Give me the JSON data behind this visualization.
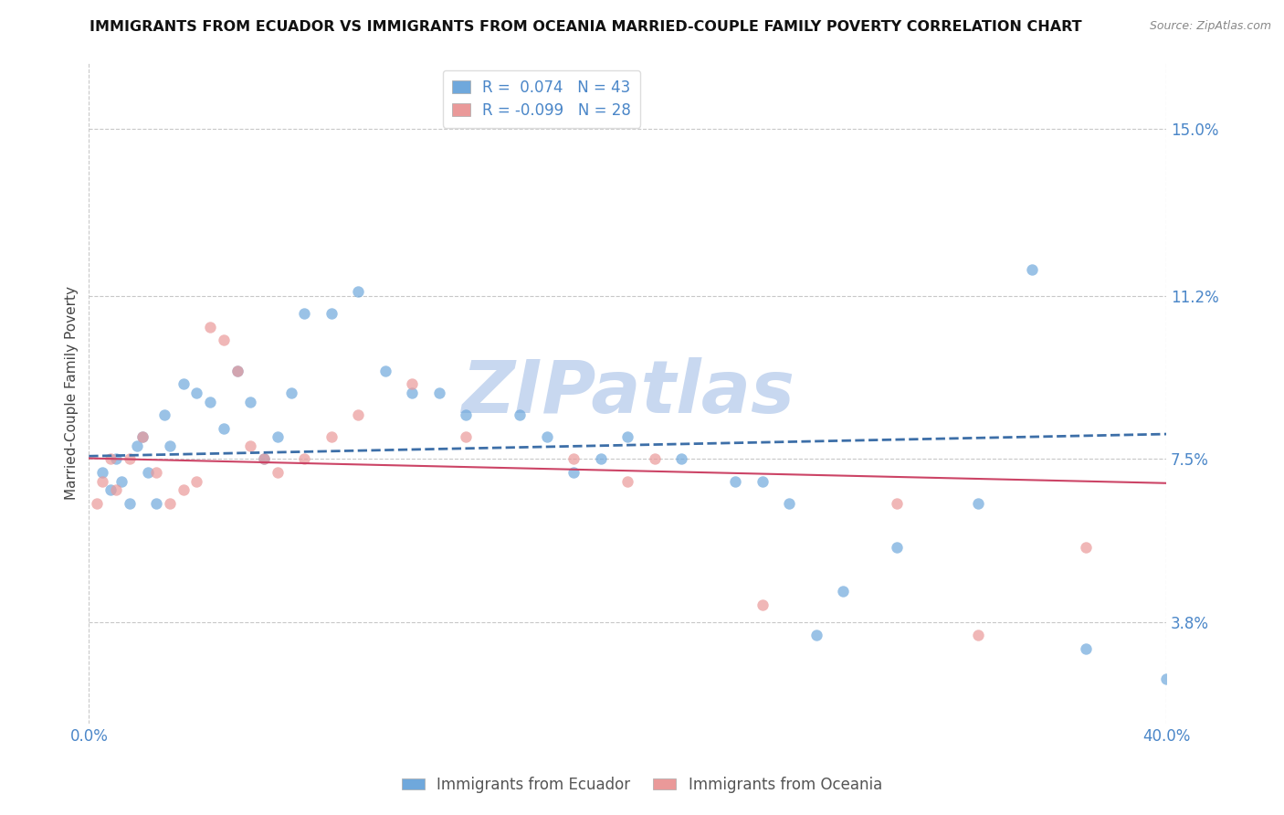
{
  "title": "IMMIGRANTS FROM ECUADOR VS IMMIGRANTS FROM OCEANIA MARRIED-COUPLE FAMILY POVERTY CORRELATION CHART",
  "source": "Source: ZipAtlas.com",
  "ylabel": "Married-Couple Family Poverty",
  "xlabel": "",
  "xlim": [
    0.0,
    40.0
  ],
  "ylim": [
    1.5,
    16.5
  ],
  "yticks": [
    3.8,
    7.5,
    11.2,
    15.0
  ],
  "xtick_labels": [
    "0.0%",
    "40.0%"
  ],
  "xtick_positions": [
    0.0,
    40.0
  ],
  "ytick_labels": [
    "3.8%",
    "7.5%",
    "11.2%",
    "15.0%"
  ],
  "ecuador_color": "#6fa8dc",
  "oceania_color": "#ea9999",
  "ecuador_line_color": "#3d6fa8",
  "oceania_line_color": "#cc4466",
  "ecuador_R": 0.074,
  "ecuador_N": 43,
  "oceania_R": -0.099,
  "oceania_N": 28,
  "watermark": "ZIPatlas",
  "watermark_color": "#c8d8f0",
  "ecuador_scatter_x": [
    0.5,
    0.8,
    1.0,
    1.2,
    1.5,
    1.8,
    2.0,
    2.2,
    2.5,
    2.8,
    3.0,
    3.5,
    4.0,
    4.5,
    5.0,
    5.5,
    6.0,
    6.5,
    7.0,
    7.5,
    8.0,
    9.0,
    10.0,
    11.0,
    12.0,
    13.0,
    14.0,
    16.0,
    17.0,
    18.0,
    19.0,
    20.0,
    22.0,
    24.0,
    25.0,
    26.0,
    27.0,
    28.0,
    30.0,
    33.0,
    35.0,
    37.0,
    40.0
  ],
  "ecuador_scatter_y": [
    7.2,
    6.8,
    7.5,
    7.0,
    6.5,
    7.8,
    8.0,
    7.2,
    6.5,
    8.5,
    7.8,
    9.2,
    9.0,
    8.8,
    8.2,
    9.5,
    8.8,
    7.5,
    8.0,
    9.0,
    10.8,
    10.8,
    11.3,
    9.5,
    9.0,
    9.0,
    8.5,
    8.5,
    8.0,
    7.2,
    7.5,
    8.0,
    7.5,
    7.0,
    7.0,
    6.5,
    3.5,
    4.5,
    5.5,
    6.5,
    11.8,
    3.2,
    2.5
  ],
  "oceania_scatter_x": [
    0.3,
    0.5,
    0.8,
    1.0,
    1.5,
    2.0,
    2.5,
    3.0,
    3.5,
    4.0,
    4.5,
    5.0,
    5.5,
    6.0,
    6.5,
    7.0,
    8.0,
    9.0,
    10.0,
    12.0,
    14.0,
    18.0,
    20.0,
    21.0,
    25.0,
    30.0,
    33.0,
    37.0
  ],
  "oceania_scatter_y": [
    6.5,
    7.0,
    7.5,
    6.8,
    7.5,
    8.0,
    7.2,
    6.5,
    6.8,
    7.0,
    10.5,
    10.2,
    9.5,
    7.8,
    7.5,
    7.2,
    7.5,
    8.0,
    8.5,
    9.2,
    8.0,
    7.5,
    7.0,
    7.5,
    4.2,
    6.5,
    3.5,
    5.5
  ],
  "ecuador_regline_x": [
    0.0,
    40.0
  ],
  "ecuador_regline_y": [
    7.2,
    8.8
  ],
  "oceania_regline_x": [
    0.0,
    40.0
  ],
  "oceania_regline_y": [
    8.0,
    5.5
  ]
}
